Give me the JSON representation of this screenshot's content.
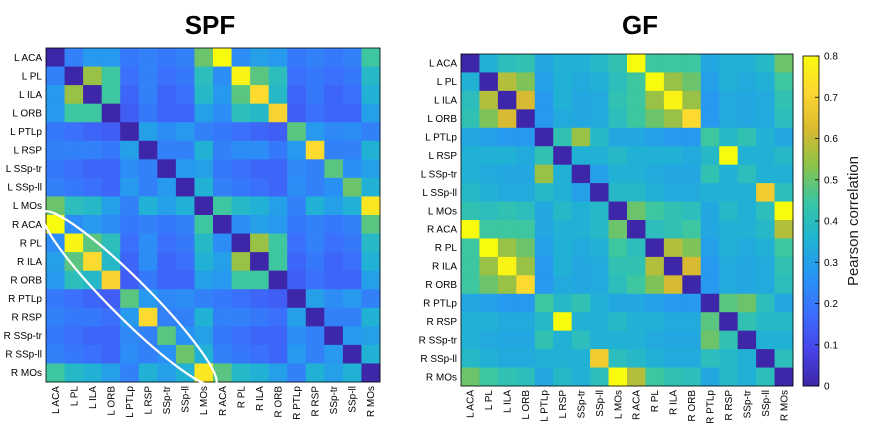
{
  "chart_data": [
    {
      "type": "heatmap",
      "title": "SPF",
      "labels": [
        "L ACA",
        "L PL",
        "L ILA",
        "L ORB",
        "L PTLp",
        "L RSP",
        "L SSp-tr",
        "L SSp-ll",
        "L MOs",
        "R ACA",
        "R PL",
        "R ILA",
        "R ORB",
        "R PTLp",
        "R RSP",
        "R SSp-tr",
        "R SSp-ll",
        "R MOs"
      ],
      "x_tick_labels": [
        "L ACA",
        "L PL",
        "L ILA",
        "L ORB",
        "L PTLp",
        "L RSP",
        "SSp-tr",
        "SSp-ll",
        "L MOs",
        "R ACA",
        "R PL",
        "R ILA",
        "R ORB",
        "R PTLp",
        "R RSP",
        "SSp-tr",
        "SSp-ll",
        "R MOs"
      ],
      "values": [
        [
          0.0,
          0.22,
          0.28,
          0.28,
          0.2,
          0.22,
          0.2,
          0.22,
          0.5,
          0.8,
          0.25,
          0.3,
          0.28,
          0.2,
          0.22,
          0.2,
          0.22,
          0.45
        ],
        [
          0.22,
          0.0,
          0.55,
          0.45,
          0.18,
          0.22,
          0.18,
          0.2,
          0.4,
          0.25,
          0.78,
          0.48,
          0.4,
          0.18,
          0.2,
          0.18,
          0.2,
          0.38
        ],
        [
          0.28,
          0.55,
          0.0,
          0.45,
          0.16,
          0.22,
          0.16,
          0.18,
          0.38,
          0.28,
          0.48,
          0.72,
          0.38,
          0.16,
          0.2,
          0.16,
          0.18,
          0.35
        ],
        [
          0.28,
          0.45,
          0.45,
          0.0,
          0.14,
          0.2,
          0.16,
          0.16,
          0.3,
          0.25,
          0.4,
          0.38,
          0.7,
          0.14,
          0.18,
          0.16,
          0.16,
          0.3
        ],
        [
          0.2,
          0.18,
          0.16,
          0.14,
          0.0,
          0.3,
          0.25,
          0.28,
          0.22,
          0.2,
          0.18,
          0.16,
          0.14,
          0.48,
          0.28,
          0.24,
          0.25,
          0.22
        ],
        [
          0.22,
          0.22,
          0.22,
          0.2,
          0.3,
          0.0,
          0.22,
          0.22,
          0.35,
          0.22,
          0.25,
          0.25,
          0.2,
          0.28,
          0.72,
          0.22,
          0.22,
          0.35
        ],
        [
          0.2,
          0.18,
          0.16,
          0.16,
          0.25,
          0.22,
          0.0,
          0.28,
          0.3,
          0.2,
          0.18,
          0.16,
          0.16,
          0.24,
          0.22,
          0.48,
          0.26,
          0.3
        ],
        [
          0.22,
          0.2,
          0.18,
          0.16,
          0.28,
          0.22,
          0.28,
          0.0,
          0.35,
          0.22,
          0.2,
          0.18,
          0.16,
          0.25,
          0.22,
          0.26,
          0.5,
          0.35
        ],
        [
          0.5,
          0.4,
          0.38,
          0.3,
          0.22,
          0.35,
          0.3,
          0.35,
          0.0,
          0.45,
          0.38,
          0.35,
          0.3,
          0.22,
          0.35,
          0.3,
          0.35,
          0.75
        ],
        [
          0.8,
          0.25,
          0.28,
          0.25,
          0.2,
          0.22,
          0.2,
          0.22,
          0.45,
          0.0,
          0.25,
          0.3,
          0.28,
          0.2,
          0.22,
          0.2,
          0.22,
          0.48
        ],
        [
          0.25,
          0.78,
          0.48,
          0.4,
          0.18,
          0.25,
          0.18,
          0.2,
          0.38,
          0.25,
          0.0,
          0.55,
          0.45,
          0.18,
          0.22,
          0.18,
          0.2,
          0.38
        ],
        [
          0.3,
          0.48,
          0.72,
          0.38,
          0.16,
          0.25,
          0.16,
          0.18,
          0.35,
          0.3,
          0.55,
          0.0,
          0.45,
          0.16,
          0.2,
          0.16,
          0.18,
          0.35
        ],
        [
          0.28,
          0.4,
          0.38,
          0.7,
          0.14,
          0.2,
          0.16,
          0.16,
          0.3,
          0.28,
          0.45,
          0.45,
          0.0,
          0.14,
          0.18,
          0.16,
          0.16,
          0.3
        ],
        [
          0.2,
          0.18,
          0.16,
          0.14,
          0.48,
          0.28,
          0.24,
          0.25,
          0.22,
          0.2,
          0.18,
          0.16,
          0.14,
          0.0,
          0.3,
          0.25,
          0.28,
          0.22
        ],
        [
          0.22,
          0.2,
          0.2,
          0.18,
          0.28,
          0.72,
          0.22,
          0.22,
          0.35,
          0.22,
          0.22,
          0.2,
          0.18,
          0.3,
          0.0,
          0.22,
          0.22,
          0.35
        ],
        [
          0.2,
          0.18,
          0.16,
          0.16,
          0.24,
          0.22,
          0.48,
          0.26,
          0.3,
          0.2,
          0.18,
          0.16,
          0.16,
          0.25,
          0.22,
          0.0,
          0.28,
          0.3
        ],
        [
          0.22,
          0.2,
          0.18,
          0.16,
          0.25,
          0.22,
          0.26,
          0.5,
          0.35,
          0.22,
          0.2,
          0.18,
          0.16,
          0.28,
          0.22,
          0.28,
          0.0,
          0.35
        ],
        [
          0.45,
          0.38,
          0.35,
          0.3,
          0.22,
          0.35,
          0.3,
          0.35,
          0.75,
          0.48,
          0.38,
          0.35,
          0.3,
          0.22,
          0.35,
          0.3,
          0.35,
          0.0
        ]
      ],
      "annotation": "ellipse around R-to-L homotopic diagonal (R ACA–L ACA to R MOs–L MOs)"
    },
    {
      "type": "heatmap",
      "title": "GF",
      "labels": [
        "L ACA",
        "L PL",
        "L ILA",
        "L ORB",
        "L PTLp",
        "L RSP",
        "L SSp-tr",
        "L SSp-ll",
        "L MOs",
        "R ACA",
        "R PL",
        "R ILA",
        "R ORB",
        "R PTLp",
        "R RSP",
        "R SSp-tr",
        "R SSp-ll",
        "R MOs"
      ],
      "x_tick_labels": [
        "L ACA",
        "L PL",
        "L ILA",
        "L ORB",
        "L PTLp",
        "L RSP",
        "SSp-tr",
        "SSp-ll",
        "L MOs",
        "R ACA",
        "R PL",
        "R ILA",
        "R ORB",
        "R PTLp",
        "R RSP",
        "SSp-tr",
        "SSp-ll",
        "R MOs"
      ],
      "values": [
        [
          0.0,
          0.35,
          0.4,
          0.42,
          0.32,
          0.35,
          0.35,
          0.38,
          0.42,
          0.85,
          0.45,
          0.45,
          0.45,
          0.32,
          0.35,
          0.35,
          0.38,
          0.5
        ],
        [
          0.35,
          0.0,
          0.58,
          0.52,
          0.3,
          0.35,
          0.33,
          0.35,
          0.4,
          0.45,
          0.8,
          0.55,
          0.5,
          0.3,
          0.35,
          0.33,
          0.35,
          0.45
        ],
        [
          0.4,
          0.58,
          0.0,
          0.62,
          0.28,
          0.35,
          0.32,
          0.33,
          0.42,
          0.45,
          0.55,
          0.78,
          0.55,
          0.28,
          0.33,
          0.32,
          0.33,
          0.42
        ],
        [
          0.42,
          0.52,
          0.62,
          0.0,
          0.28,
          0.33,
          0.32,
          0.33,
          0.4,
          0.45,
          0.5,
          0.55,
          0.72,
          0.28,
          0.33,
          0.32,
          0.33,
          0.4
        ],
        [
          0.32,
          0.3,
          0.28,
          0.28,
          0.0,
          0.42,
          0.55,
          0.38,
          0.32,
          0.32,
          0.3,
          0.28,
          0.28,
          0.45,
          0.38,
          0.42,
          0.35,
          0.32
        ],
        [
          0.35,
          0.35,
          0.35,
          0.33,
          0.42,
          0.0,
          0.35,
          0.35,
          0.38,
          0.35,
          0.35,
          0.35,
          0.33,
          0.38,
          0.82,
          0.35,
          0.35,
          0.38
        ],
        [
          0.35,
          0.33,
          0.32,
          0.32,
          0.55,
          0.35,
          0.0,
          0.3,
          0.35,
          0.35,
          0.33,
          0.32,
          0.32,
          0.42,
          0.35,
          0.4,
          0.35,
          0.35
        ],
        [
          0.38,
          0.35,
          0.33,
          0.33,
          0.38,
          0.35,
          0.3,
          0.0,
          0.38,
          0.38,
          0.35,
          0.33,
          0.33,
          0.35,
          0.35,
          0.35,
          0.68,
          0.4
        ],
        [
          0.42,
          0.4,
          0.42,
          0.4,
          0.32,
          0.38,
          0.35,
          0.38,
          0.0,
          0.5,
          0.45,
          0.42,
          0.4,
          0.32,
          0.38,
          0.35,
          0.4,
          0.8
        ],
        [
          0.85,
          0.45,
          0.45,
          0.45,
          0.32,
          0.35,
          0.35,
          0.38,
          0.5,
          0.0,
          0.4,
          0.42,
          0.45,
          0.32,
          0.35,
          0.35,
          0.38,
          0.58
        ],
        [
          0.45,
          0.8,
          0.55,
          0.5,
          0.3,
          0.35,
          0.33,
          0.35,
          0.45,
          0.4,
          0.0,
          0.58,
          0.52,
          0.3,
          0.35,
          0.33,
          0.35,
          0.45
        ],
        [
          0.45,
          0.55,
          0.78,
          0.55,
          0.28,
          0.35,
          0.32,
          0.33,
          0.42,
          0.42,
          0.58,
          0.0,
          0.62,
          0.28,
          0.33,
          0.32,
          0.33,
          0.42
        ],
        [
          0.45,
          0.5,
          0.55,
          0.72,
          0.28,
          0.33,
          0.32,
          0.33,
          0.4,
          0.45,
          0.52,
          0.62,
          0.0,
          0.28,
          0.33,
          0.32,
          0.33,
          0.4
        ],
        [
          0.32,
          0.3,
          0.28,
          0.28,
          0.45,
          0.38,
          0.42,
          0.35,
          0.32,
          0.32,
          0.3,
          0.28,
          0.28,
          0.0,
          0.48,
          0.5,
          0.4,
          0.32
        ],
        [
          0.35,
          0.35,
          0.33,
          0.33,
          0.38,
          0.82,
          0.35,
          0.35,
          0.38,
          0.35,
          0.35,
          0.33,
          0.33,
          0.48,
          0.0,
          0.42,
          0.38,
          0.38
        ],
        [
          0.35,
          0.33,
          0.32,
          0.32,
          0.42,
          0.35,
          0.4,
          0.35,
          0.35,
          0.35,
          0.33,
          0.32,
          0.32,
          0.5,
          0.42,
          0.0,
          0.35,
          0.35
        ],
        [
          0.38,
          0.35,
          0.33,
          0.33,
          0.35,
          0.35,
          0.35,
          0.68,
          0.4,
          0.38,
          0.35,
          0.33,
          0.33,
          0.4,
          0.38,
          0.35,
          0.0,
          0.4
        ],
        [
          0.5,
          0.45,
          0.42,
          0.4,
          0.32,
          0.38,
          0.35,
          0.4,
          0.8,
          0.58,
          0.45,
          0.42,
          0.4,
          0.32,
          0.38,
          0.35,
          0.4,
          0.0
        ]
      ]
    }
  ],
  "colorbar": {
    "label": "Pearson correlation",
    "min": 0,
    "max": 0.8,
    "ticks": [
      "0",
      "0.1",
      "0.2",
      "0.3",
      "0.4",
      "0.5",
      "0.6",
      "0.7",
      "0.8"
    ],
    "colormap": "parula"
  },
  "colors": {
    "parula_stops": [
      "#3e26a8",
      "#4744e8",
      "#3b6ffc",
      "#2894f4",
      "#1fb3d3",
      "#38c6a5",
      "#8ac34a",
      "#d9ba30",
      "#fdd631",
      "#f9fb0e"
    ]
  }
}
